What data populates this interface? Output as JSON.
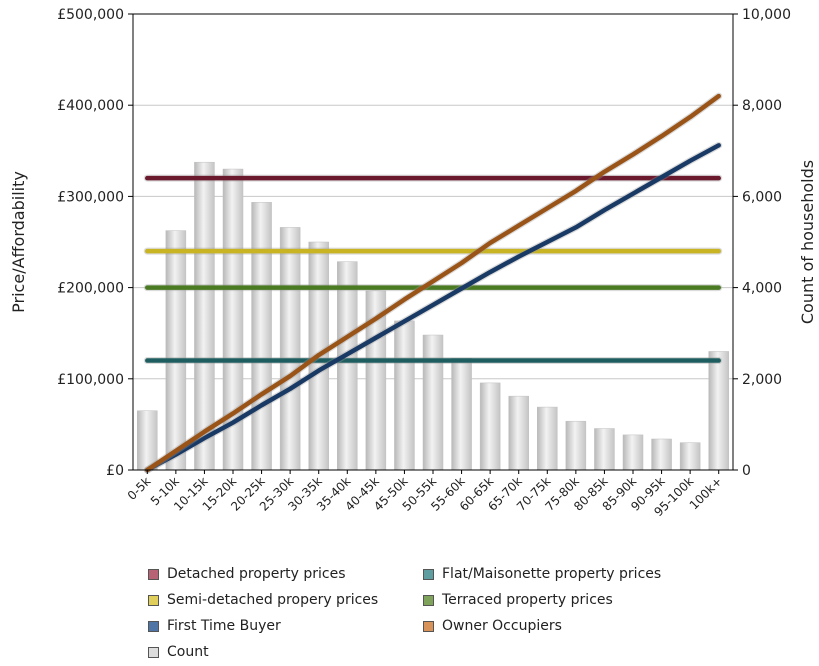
{
  "chart_data": {
    "type": "bar+line",
    "categories": [
      "0-5k",
      "5-10k",
      "10-15k",
      "15-20k",
      "20-25k",
      "25-30k",
      "30-35k",
      "35-40k",
      "40-45k",
      "45-50k",
      "50-55k",
      "55-60k",
      "60-65k",
      "65-70k",
      "70-75k",
      "75-80k",
      "80-85k",
      "85-90k",
      "90-95k",
      "95-100k",
      "100k+"
    ],
    "bar_series": {
      "name": "Count",
      "axis": "right",
      "values": [
        1300,
        5250,
        6750,
        6600,
        5870,
        5320,
        5000,
        4570,
        3930,
        3270,
        2960,
        2450,
        1910,
        1620,
        1380,
        1070,
        910,
        770,
        680,
        600,
        2600
      ]
    },
    "line_series": [
      {
        "name": "Detached property prices",
        "axis": "left",
        "values": [
          320000,
          320000,
          320000,
          320000,
          320000,
          320000,
          320000,
          320000,
          320000,
          320000,
          320000,
          320000,
          320000,
          320000,
          320000,
          320000,
          320000,
          320000,
          320000,
          320000,
          320000
        ]
      },
      {
        "name": "Semi-detached propery prices",
        "axis": "left",
        "values": [
          240000,
          240000,
          240000,
          240000,
          240000,
          240000,
          240000,
          240000,
          240000,
          240000,
          240000,
          240000,
          240000,
          240000,
          240000,
          240000,
          240000,
          240000,
          240000,
          240000,
          240000
        ]
      },
      {
        "name": "Terraced property prices",
        "axis": "left",
        "values": [
          200000,
          200000,
          200000,
          200000,
          200000,
          200000,
          200000,
          200000,
          200000,
          200000,
          200000,
          200000,
          200000,
          200000,
          200000,
          200000,
          200000,
          200000,
          200000,
          200000,
          200000
        ]
      },
      {
        "name": "Flat/Maisonette property prices",
        "axis": "left",
        "values": [
          120000,
          120000,
          120000,
          120000,
          120000,
          120000,
          120000,
          120000,
          120000,
          120000,
          120000,
          120000,
          120000,
          120000,
          120000,
          120000,
          120000,
          120000,
          120000,
          120000,
          120000
        ]
      },
      {
        "name": "First Time Buyer",
        "axis": "left",
        "values": [
          0,
          17000,
          35000,
          52000,
          71000,
          89000,
          109000,
          127000,
          145000,
          163000,
          181000,
          199000,
          217000,
          234000,
          250000,
          266000,
          285000,
          303000,
          321000,
          339000,
          356000
        ]
      },
      {
        "name": "Owner Occupiers",
        "axis": "left",
        "values": [
          0,
          21000,
          42000,
          62000,
          83000,
          103000,
          126000,
          146000,
          166000,
          187000,
          207000,
          227000,
          249000,
          268000,
          287000,
          306000,
          327000,
          346000,
          366000,
          387000,
          410000
        ]
      }
    ],
    "ylabel": "Price/Affordability",
    "y2label": "Count of households",
    "ylim": [
      0,
      500000
    ],
    "y2lim": [
      0,
      10000
    ],
    "yticks": [
      "£0",
      "£100,000",
      "£200,000",
      "£300,000",
      "£400,000",
      "£500,000"
    ],
    "y2ticks": [
      "0",
      "2,000",
      "4,000",
      "6,000",
      "8,000",
      "10,000"
    ],
    "grid": true,
    "legend_position": "bottom",
    "colors": {
      "Detached property prices": "#6b1a2e",
      "Semi-detached propery prices": "#c9b424",
      "Terraced property prices": "#4a7a22",
      "Flat/Maisonette property prices": "#1e5e60",
      "First Time Buyer": "#1a3a66",
      "Owner Occupiers": "#9a5418",
      "Count": "#d0d0d0"
    },
    "swatch_colors": {
      "Detached property prices": "#b86275",
      "Semi-detached propery prices": "#e0cf5a",
      "Terraced property prices": "#7fa35a",
      "Flat/Maisonette property prices": "#5f9ea0",
      "First Time Buyer": "#4f75a6",
      "Owner Occupiers": "#d8935a",
      "Count": "#dddddd"
    }
  },
  "legend": {
    "items": [
      {
        "label": "Detached property prices",
        "key": "Detached property prices"
      },
      {
        "label": "Flat/Maisonette property prices",
        "key": "Flat/Maisonette property prices"
      },
      {
        "label": "Semi-detached propery prices",
        "key": "Semi-detached propery prices"
      },
      {
        "label": "Terraced property prices",
        "key": "Terraced property prices"
      },
      {
        "label": "First Time Buyer",
        "key": "First Time Buyer"
      },
      {
        "label": "Owner Occupiers",
        "key": "Owner Occupiers"
      },
      {
        "label": "Count",
        "key": "Count"
      }
    ]
  }
}
